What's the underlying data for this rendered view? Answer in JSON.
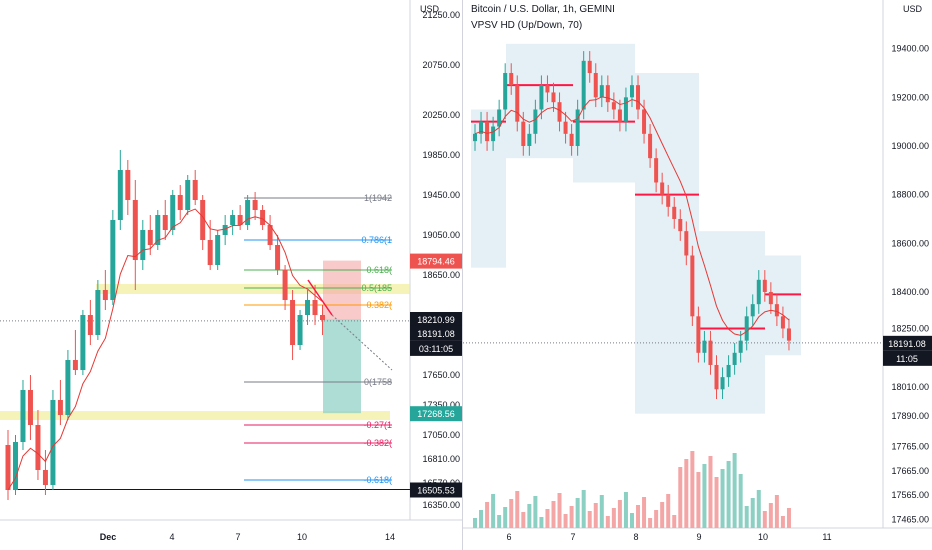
{
  "chart_data": [
    {
      "type": "candlestick",
      "pane": "left-4h",
      "unit": "USD",
      "x_ticks": [
        "Dec",
        "4",
        "7",
        "10",
        "14"
      ],
      "y_ticks": [
        21250,
        20750,
        20250,
        19850,
        19450,
        19050,
        18650,
        17650,
        17350,
        17050,
        16810,
        16570,
        16350
      ],
      "ylim": [
        16200,
        21400
      ],
      "ohlc": [
        [
          16950,
          17100,
          16400,
          16500
        ],
        [
          16500,
          17050,
          16450,
          16980
        ],
        [
          16980,
          17600,
          16900,
          17500
        ],
        [
          17500,
          17650,
          17000,
          17150
        ],
        [
          17150,
          17300,
          16600,
          16700
        ],
        [
          16700,
          16900,
          16450,
          16550
        ],
        [
          16550,
          17500,
          16500,
          17400
        ],
        [
          17400,
          17600,
          17150,
          17250
        ],
        [
          17250,
          17900,
          17200,
          17800
        ],
        [
          17800,
          18100,
          17650,
          17700
        ],
        [
          17700,
          18300,
          17650,
          18250
        ],
        [
          18250,
          18400,
          17950,
          18050
        ],
        [
          18050,
          18600,
          18000,
          18500
        ],
        [
          18500,
          18700,
          18300,
          18400
        ],
        [
          18400,
          19300,
          18350,
          19200
        ],
        [
          19200,
          19900,
          19100,
          19700
        ],
        [
          19700,
          19800,
          19250,
          19400
        ],
        [
          19400,
          19600,
          18500,
          18800
        ],
        [
          18800,
          19200,
          18700,
          19100
        ],
        [
          19100,
          19250,
          18850,
          18950
        ],
        [
          18950,
          19300,
          18900,
          19250
        ],
        [
          19250,
          19400,
          19000,
          19100
        ],
        [
          19100,
          19500,
          19050,
          19450
        ],
        [
          19450,
          19550,
          19200,
          19300
        ],
        [
          19300,
          19650,
          19250,
          19600
        ],
        [
          19600,
          19700,
          19350,
          19400
        ],
        [
          19400,
          19450,
          18900,
          19000
        ],
        [
          19000,
          19200,
          18700,
          18750
        ],
        [
          18750,
          19100,
          18700,
          19050
        ],
        [
          19050,
          19250,
          18950,
          19150
        ],
        [
          19150,
          19300,
          19050,
          19250
        ],
        [
          19250,
          19350,
          19100,
          19150
        ],
        [
          19150,
          19450,
          19100,
          19400
        ],
        [
          19400,
          19480,
          19200,
          19300
        ],
        [
          19300,
          19350,
          19100,
          19150
        ],
        [
          19150,
          19250,
          18900,
          18950
        ],
        [
          18950,
          19050,
          18650,
          18700
        ],
        [
          18700,
          18750,
          18300,
          18400
        ],
        [
          18400,
          18500,
          17800,
          17950
        ],
        [
          17950,
          18300,
          17900,
          18250
        ],
        [
          18250,
          18500,
          18150,
          18400
        ],
        [
          18400,
          18550,
          18150,
          18250
        ],
        [
          18250,
          18350,
          18050,
          18200
        ]
      ],
      "annotations": [
        {
          "text": "18794.46",
          "color": "#ef5350"
        },
        {
          "text": "18210.99",
          "color": "#131722"
        },
        {
          "text": "18191.08",
          "color": "#131722"
        },
        {
          "text": "03:11:05",
          "color": "#131722"
        },
        {
          "text": "17268.56",
          "color": "#26a69a"
        },
        {
          "text": "16505.53",
          "color": "#131722"
        }
      ],
      "fib_labels": [
        {
          "text": "1(1942",
          "color": "#787b86",
          "level": 19420
        },
        {
          "text": "0.786(1",
          "color": "#2196f3",
          "level": 19000
        },
        {
          "text": "0.618(",
          "color": "#4caf50",
          "level": 18700
        },
        {
          "text": "0.5(185",
          "color": "#4caf50",
          "level": 18520
        },
        {
          "text": "0.382(",
          "color": "#ff9800",
          "level": 18350
        },
        {
          "text": "0(1758",
          "color": "#787b86",
          "level": 17580
        },
        {
          "text": "-0.27(1",
          "color": "#e91e63",
          "level": 17150
        },
        {
          "text": "-0.382(",
          "color": "#e91e63",
          "level": 16970
        },
        {
          "text": "-0.618(",
          "color": "#2196f3",
          "level": 16600
        }
      ]
    },
    {
      "type": "candlestick",
      "pane": "right-1h",
      "title": "Bitcoin / U.S. Dollar, 1h, GEMINI",
      "indicator": "VPSV HD (Up/Down, 70)",
      "unit": "USD",
      "x_ticks": [
        "6",
        "7",
        "8",
        "9",
        "10",
        "11"
      ],
      "y_ticks": [
        19400,
        19200,
        19000,
        18800,
        18600,
        18400,
        18250,
        18010,
        17890,
        17765,
        17665,
        17565,
        17465
      ],
      "ylim": [
        17430,
        19600
      ],
      "close": [
        19050,
        19100,
        19020,
        19080,
        19150,
        19300,
        19250,
        19100,
        19000,
        19050,
        19150,
        19250,
        19220,
        19180,
        19100,
        19050,
        19000,
        19150,
        19350,
        19300,
        19200,
        19250,
        19180,
        19150,
        19100,
        19200,
        19250,
        19150,
        19050,
        18950,
        18850,
        18800,
        18750,
        18700,
        18650,
        18550,
        18300,
        18150,
        18200,
        18100,
        18000,
        18050,
        18100,
        18150,
        18200,
        18300,
        18350,
        18450,
        18400,
        18350,
        18300,
        18250,
        18200
      ],
      "annotations": [
        {
          "text": "18191.08",
          "color": "#131722"
        },
        {
          "text": "11:05",
          "color": "#131722"
        }
      ]
    }
  ]
}
